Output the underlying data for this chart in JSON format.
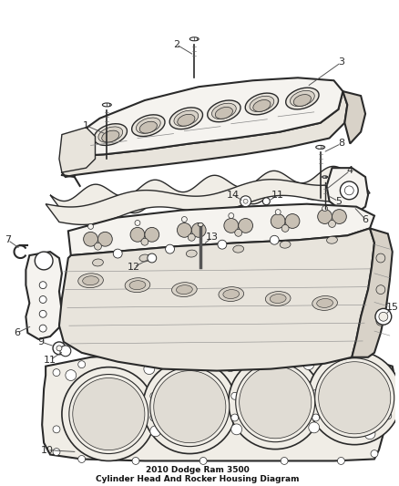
{
  "title": "2010 Dodge Ram 3500\nCylinder Head And Rocker Housing Diagram",
  "background_color": "#ffffff",
  "line_color": "#2a2a2a",
  "label_color": "#2a2a2a",
  "figsize": [
    4.38,
    5.33
  ],
  "dpi": 100,
  "fill_light": "#f5f3ef",
  "fill_mid": "#e8e4dc",
  "fill_dark": "#d8d2c8",
  "fill_inner": "#c8c0b4",
  "gasket_fill": "#f0ede6"
}
